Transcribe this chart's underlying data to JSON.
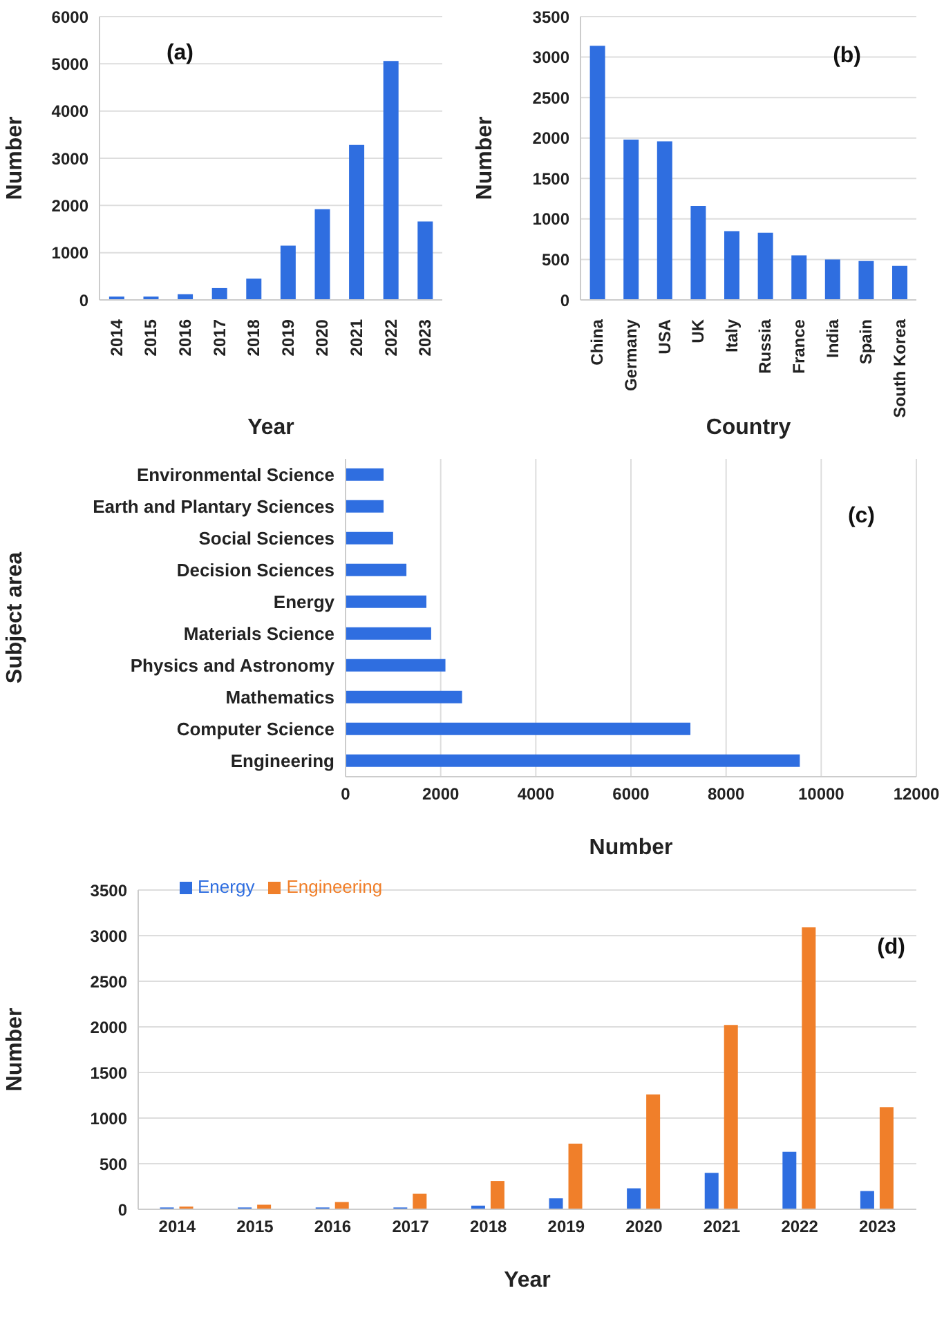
{
  "chart_data": [
    {
      "type": "bar",
      "categories": [
        "2014",
        "2015",
        "2016",
        "2017",
        "2018",
        "2019",
        "2020",
        "2021",
        "2022",
        "2023"
      ],
      "values": [
        70,
        70,
        120,
        250,
        450,
        1150,
        1920,
        3280,
        5060,
        1660
      ],
      "color": "#2f6ee0",
      "xlabel": "Year",
      "ylabel": "Number",
      "ylim": [
        0,
        6000
      ],
      "yticks": [
        0,
        1000,
        2000,
        3000,
        4000,
        5000,
        6000
      ],
      "grid": "y",
      "annotations": [
        "(a)"
      ]
    },
    {
      "type": "bar",
      "categories": [
        "China",
        "Germany",
        "USA",
        "UK",
        "Italy",
        "Russia",
        "France",
        "India",
        "Spain",
        "South Korea"
      ],
      "values": [
        3140,
        1980,
        1960,
        1160,
        850,
        830,
        550,
        500,
        480,
        420
      ],
      "color": "#2f6ee0",
      "xlabel": "Country",
      "ylabel": "Number",
      "ylim": [
        0,
        3500
      ],
      "yticks": [
        0,
        500,
        1000,
        1500,
        2000,
        2500,
        3000,
        3500
      ],
      "grid": "y",
      "annotations": [
        "(b)"
      ]
    },
    {
      "type": "bar",
      "orientation": "horizontal",
      "categories": [
        "Environmental Science",
        "Earth and Plantary Sciences",
        "Social Sciences",
        "Decision Sciences",
        "Energy",
        "Materials Science",
        "Physics and Astronomy",
        "Mathematics",
        "Computer Science",
        "Engineering"
      ],
      "values": [
        800,
        800,
        1000,
        1280,
        1700,
        1800,
        2100,
        2450,
        7250,
        9550
      ],
      "color": "#2f6ee0",
      "xlabel": "Number",
      "ylabel": "Subject area",
      "xlim": [
        0,
        12000
      ],
      "xticks": [
        0,
        2000,
        4000,
        6000,
        8000,
        10000,
        12000
      ],
      "grid": "x",
      "annotations": [
        "(c)"
      ]
    },
    {
      "type": "bar",
      "categories": [
        "2014",
        "2015",
        "2016",
        "2017",
        "2018",
        "2019",
        "2020",
        "2021",
        "2022",
        "2023"
      ],
      "series": [
        {
          "name": "Energy",
          "color": "#2f6ee0",
          "values": [
            20,
            20,
            20,
            20,
            40,
            120,
            230,
            400,
            630,
            200
          ]
        },
        {
          "name": "Engineering",
          "color": "#f07f2a",
          "values": [
            30,
            50,
            80,
            170,
            310,
            720,
            1260,
            2020,
            3090,
            1120
          ]
        }
      ],
      "xlabel": "Year",
      "ylabel": "Number",
      "ylim": [
        0,
        3500
      ],
      "yticks": [
        0,
        500,
        1000,
        1500,
        2000,
        2500,
        3000,
        3500
      ],
      "grid": "y",
      "legend": "top left",
      "annotations": [
        "(d)"
      ]
    }
  ]
}
